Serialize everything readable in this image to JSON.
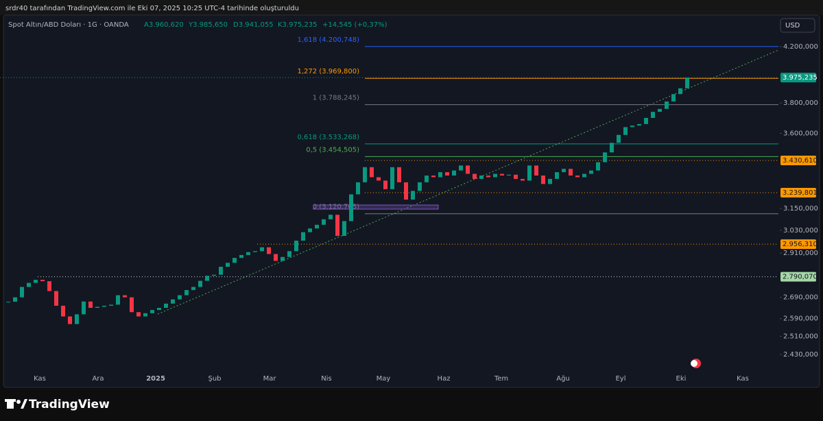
{
  "header": {
    "caption": "srdr40 tarafından TradingView.com ile Eki 07, 2025 10:25 UTC-4 tarihinde oluşturuldu"
  },
  "legend": {
    "symbol": "Spot Altın/ABD Doları · 1G · OANDA",
    "open": "A3.960,620",
    "high": "Y3.985,650",
    "low": "D3.941,055",
    "close": "K3.975,235",
    "change": "+14,545 (+0,37%)"
  },
  "currency_button": "USD",
  "brand": "TradingView",
  "chart_data": {
    "type": "candlestick",
    "close": [
      2669,
      2690,
      2740,
      2760,
      2775,
      2768,
      2720,
      2650,
      2600,
      2565,
      2610,
      2670,
      2640,
      2645,
      2650,
      2655,
      2700,
      2690,
      2620,
      2600,
      2615,
      2630,
      2640,
      2660,
      2680,
      2700,
      2725,
      2740,
      2770,
      2795,
      2800,
      2840,
      2860,
      2885,
      2900,
      2915,
      2920,
      2940,
      2905,
      2870,
      2890,
      2920,
      2975,
      3020,
      3040,
      3060,
      3090,
      3115,
      3000,
      3080,
      3230,
      3300,
      3390,
      3330,
      3310,
      3260,
      3390,
      3300,
      3200,
      3250,
      3300,
      3340,
      3330,
      3360,
      3340,
      3370,
      3400,
      3350,
      3320,
      3340,
      3330,
      3350,
      3340,
      3345,
      3320,
      3310,
      3400,
      3340,
      3290,
      3320,
      3360,
      3380,
      3340,
      3330,
      3350,
      3370,
      3420,
      3480,
      3540,
      3590,
      3640,
      3650,
      3660,
      3700,
      3740,
      3760,
      3810,
      3860,
      3900,
      3975
    ],
    "up_color": "#089981",
    "down_color": "#f23645",
    "log_scale": true,
    "ylim": [
      2292,
      4442
    ],
    "yticks": [
      {
        "value": 4200,
        "label": "4.200,000"
      },
      {
        "value": 3800,
        "label": "3.800,000"
      },
      {
        "value": 3600,
        "label": "3.600,000"
      },
      {
        "value": 3150,
        "label": "3.150,000"
      },
      {
        "value": 3030,
        "label": "3.030,000"
      },
      {
        "value": 2910,
        "label": "2.910,000"
      },
      {
        "value": 2690,
        "label": "2.690,000"
      },
      {
        "value": 2590,
        "label": "2.590,000"
      },
      {
        "value": 2510,
        "label": "2.510,000"
      },
      {
        "value": 2430,
        "label": "2.430,000"
      }
    ],
    "x_labels": [
      "Kas",
      "Ara",
      "2025",
      "Şub",
      "Mar",
      "Nis",
      "May",
      "Haz",
      "Tem",
      "Ağu",
      "Eyl",
      "Eki",
      "Kas"
    ],
    "fib_levels": [
      {
        "value": 4200.748,
        "label": "1,618 (4.200,748)",
        "color": "#2962ff"
      },
      {
        "value": 3969.8,
        "label": "1,272 (3.969,800)",
        "color": "#ff9800"
      },
      {
        "value": 3788.245,
        "label": "1 (3.788,245)",
        "color": "#787b86"
      },
      {
        "value": 3533.268,
        "label": "0,618 (3.533,268)",
        "color": "#089981"
      },
      {
        "value": 3454.505,
        "label": "0,5 (3.454,505)",
        "color": "#4caf50"
      },
      {
        "value": 3120.765,
        "label": "0 (3.120,765)",
        "color": "#787b86"
      }
    ],
    "price_levels": [
      {
        "value": 3975.235,
        "label": "3.975,235",
        "color": "#089981"
      },
      {
        "value": 3430.61,
        "label": "3.430,610",
        "color": "#ff9800"
      },
      {
        "value": 3239.801,
        "label": "3.239,801",
        "color": "#ff9800"
      },
      {
        "value": 2956.31,
        "label": "2.956,310",
        "color": "#ff9800"
      },
      {
        "value": 2790.07,
        "label": "2.790,070",
        "color": "#a5d6a7"
      }
    ],
    "trendline_color": "#4caf50"
  }
}
